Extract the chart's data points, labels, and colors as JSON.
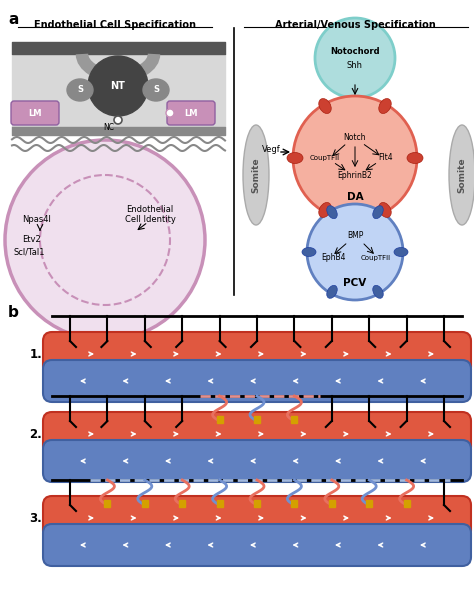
{
  "title_a": "a",
  "title_b": "b",
  "ec_title": "Endothelial Cell Specification",
  "av_title": "Arterial/Venous Specification",
  "bg_color": "#ffffff",
  "dark_gray": "#555555",
  "medium_gray": "#888888",
  "light_gray": "#cccccc",
  "pink_color": "#c890b8",
  "pink_light": "#e8d0e0",
  "teal_color": "#7ececa",
  "teal_light": "#aedddd",
  "red_color": "#e87060",
  "red_light": "#f0a090",
  "blue_color": "#7090d0",
  "blue_light": "#a0b8e8",
  "arrow_color": "#222222",
  "tube_red": "#e05840",
  "tube_blue": "#6080c0",
  "tube_red_dark": "#c03020",
  "tube_blue_dark": "#4060a0"
}
